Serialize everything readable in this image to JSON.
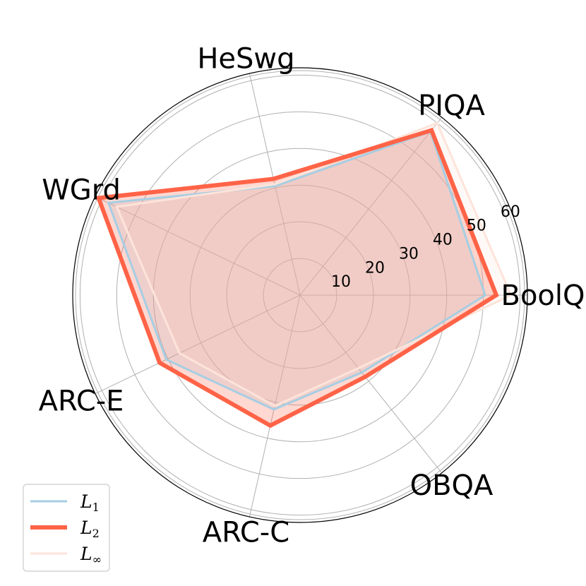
{
  "chart_data": {
    "type": "radar",
    "title": "",
    "categories": [
      "BoolQ",
      "PIQA",
      "HeSwg",
      "WGrd",
      "ARC-E",
      "ARC-C",
      "OBQA"
    ],
    "rlim": [
      0,
      62
    ],
    "rticks": [
      10,
      20,
      30,
      40,
      50,
      60
    ],
    "grid": true,
    "legend_position": "bottom-left",
    "series": [
      {
        "name": "L",
        "subscript": "1",
        "color": "#a6cee3",
        "values": [
          50.5,
          57.0,
          30.5,
          58.0,
          40.5,
          32.0,
          27.0
        ]
      },
      {
        "name": "L",
        "subscript": "2",
        "color": "#ff6347",
        "values": [
          53.5,
          57.5,
          32.5,
          61.0,
          42.5,
          36.5,
          28.5
        ]
      },
      {
        "name": "L",
        "subscript": "∞",
        "color": "#fde4da",
        "values": [
          57.5,
          60.0,
          31.0,
          55.5,
          36.5,
          31.0,
          25.5
        ]
      }
    ]
  }
}
